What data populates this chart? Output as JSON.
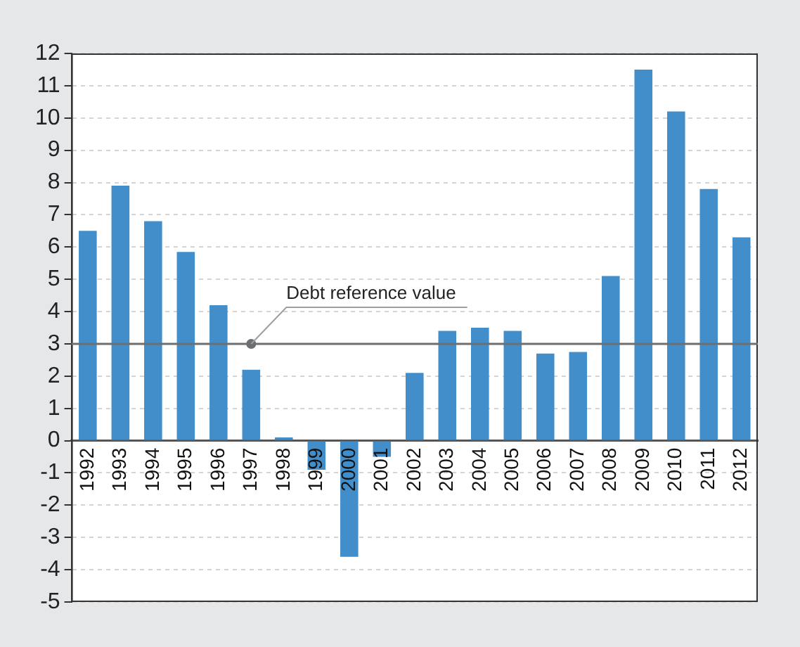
{
  "chart_data": {
    "type": "bar",
    "categories": [
      "1992",
      "1993",
      "1994",
      "1995",
      "1996",
      "1997",
      "1998",
      "1999",
      "2000",
      "2001",
      "2002",
      "2003",
      "2004",
      "2005",
      "2006",
      "2007",
      "2008",
      "2009",
      "2010",
      "2011",
      "2012"
    ],
    "values": [
      6.5,
      7.9,
      6.8,
      5.85,
      4.2,
      2.2,
      0.1,
      -0.9,
      -3.6,
      -0.5,
      2.1,
      3.4,
      3.5,
      3.4,
      2.7,
      2.75,
      5.1,
      11.5,
      10.2,
      7.8,
      6.3
    ],
    "color": "#428ecb",
    "ylim": [
      -5,
      12
    ],
    "yticks": [
      -5,
      -4,
      -3,
      -2,
      -1,
      0,
      1,
      2,
      3,
      4,
      5,
      6,
      7,
      8,
      9,
      10,
      11,
      12
    ],
    "grid": "y",
    "legend": false,
    "ref_lines": [
      {
        "axis": "y",
        "value": 3,
        "label": "Debt reference value",
        "color": "#6d6e70"
      }
    ]
  }
}
